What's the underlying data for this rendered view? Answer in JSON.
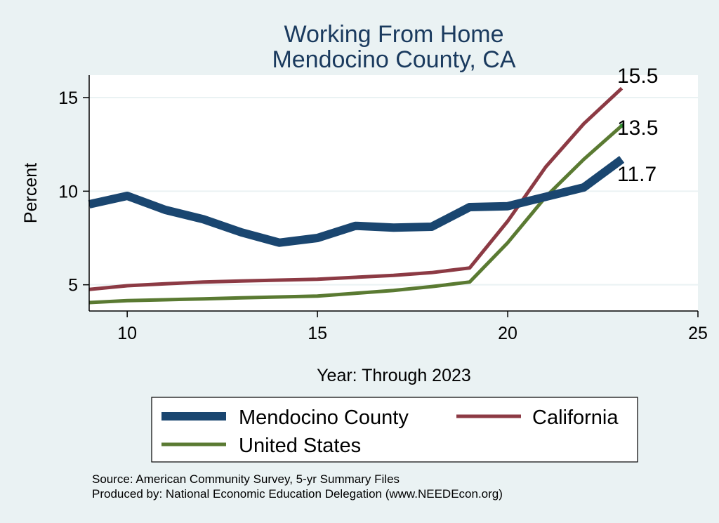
{
  "chart_data": {
    "type": "line",
    "title": "Working From Home",
    "subtitle": "Mendocino County, CA",
    "xlabel": "Year: Through 2023",
    "ylabel": "Percent",
    "xlim": [
      9,
      25
    ],
    "ylim": [
      3.6,
      16.2
    ],
    "xticks": [
      10,
      15,
      20,
      25
    ],
    "yticks": [
      5,
      10,
      15
    ],
    "grid": "horizontal",
    "legend_position": "bottom",
    "series": [
      {
        "name": "Mendocino County",
        "color": "#1a4670",
        "x": [
          9,
          10,
          11,
          12,
          13,
          14,
          15,
          16,
          17,
          18,
          19,
          20,
          21,
          22,
          23
        ],
        "values": [
          9.3,
          9.75,
          9.0,
          8.5,
          7.8,
          7.25,
          7.5,
          8.15,
          8.05,
          8.1,
          9.15,
          9.2,
          9.7,
          10.2,
          11.7
        ]
      },
      {
        "name": "California",
        "color": "#8c3a44",
        "x": [
          9,
          10,
          11,
          12,
          13,
          14,
          15,
          16,
          17,
          18,
          19,
          20,
          21,
          22,
          23
        ],
        "values": [
          4.75,
          4.95,
          5.05,
          5.15,
          5.2,
          5.25,
          5.3,
          5.4,
          5.5,
          5.65,
          5.9,
          8.4,
          11.3,
          13.6,
          15.5
        ]
      },
      {
        "name": "United States",
        "color": "#5a7a32",
        "x": [
          9,
          10,
          11,
          12,
          13,
          14,
          15,
          16,
          17,
          18,
          19,
          20,
          21,
          22,
          23
        ],
        "values": [
          4.05,
          4.15,
          4.2,
          4.25,
          4.3,
          4.35,
          4.4,
          4.55,
          4.7,
          4.9,
          5.15,
          7.25,
          9.7,
          11.7,
          13.5
        ]
      }
    ],
    "end_labels": [
      "15.5",
      "13.5",
      "11.7"
    ]
  },
  "notes": {
    "source": "Source: American Community Survey, 5-yr Summary Files",
    "produced": "Produced by: National Economic Education Delegation (www.NEEDEcon.org)"
  }
}
